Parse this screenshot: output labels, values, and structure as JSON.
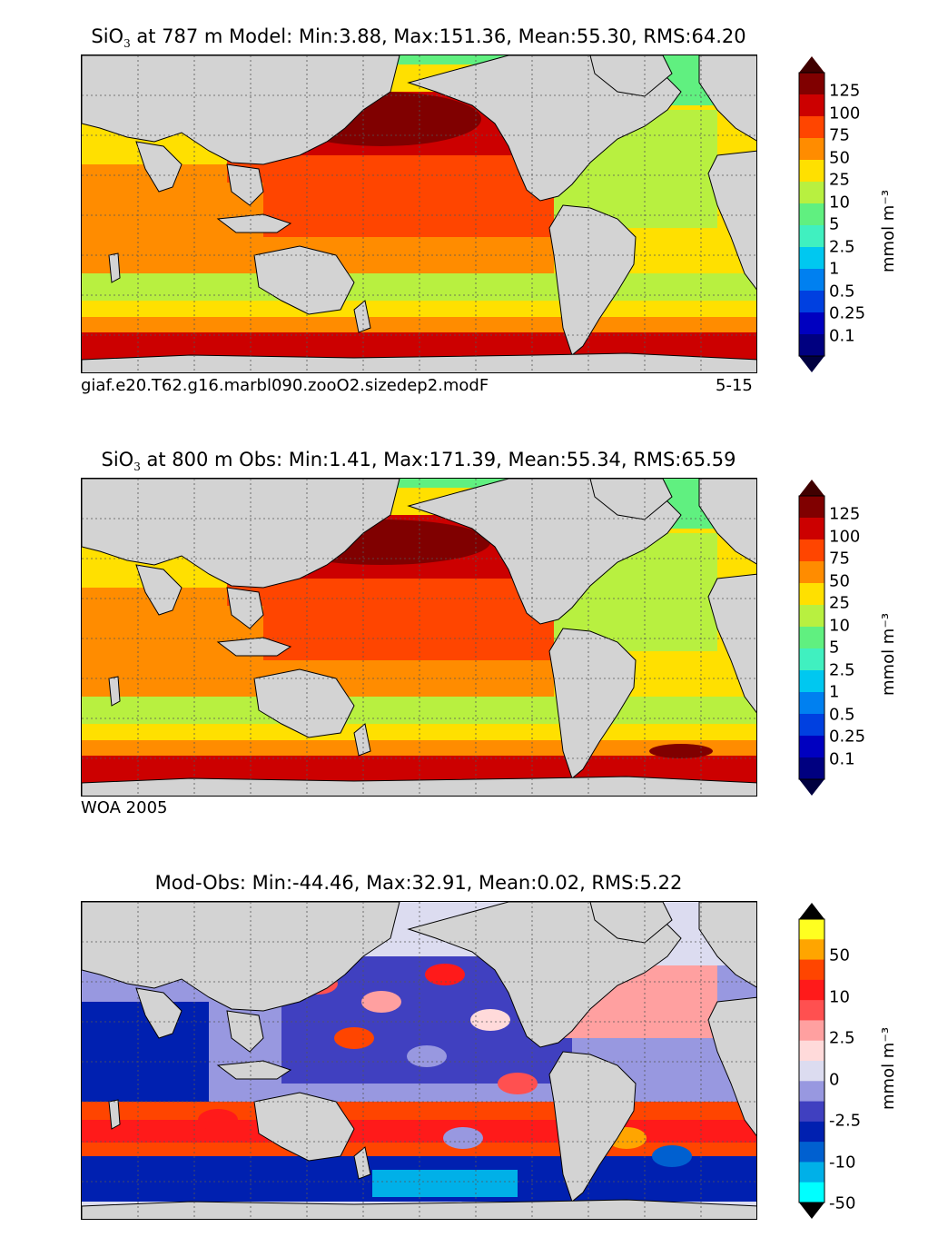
{
  "panels": [
    {
      "title_prefix": "SiO",
      "title_sub": "3",
      "title_suffix": " at 787 m Model: Min:3.88, Max:151.36, Mean:55.30, RMS:64.20",
      "caption_left": "giaf.e20.T62.g16.marbl090.zooO2.sizedep2.modF",
      "caption_right": "5-15",
      "colorbar_unit": "mmol m⁻³",
      "colorbar_ticks": [
        "125",
        "100",
        "75",
        "50",
        "25",
        "10",
        "5",
        "2.5",
        "1",
        "0.5",
        "0.25",
        "0.1"
      ],
      "colorbar_colors": [
        "#800000",
        "#cc0000",
        "#ff4500",
        "#ff8c00",
        "#ffe000",
        "#b8f040",
        "#60f080",
        "#40f0c0",
        "#00c8f0",
        "#0080f0",
        "#0040e0",
        "#0000c0",
        "#000080"
      ],
      "overflow_top": "#400000",
      "overflow_bottom": "#000040"
    },
    {
      "title_prefix": "SiO",
      "title_sub": "3",
      "title_suffix": " at 800 m Obs: Min:1.41, Max:171.39, Mean:55.34, RMS:65.59",
      "caption_left": "WOA 2005",
      "caption_right": "",
      "colorbar_unit": "mmol m⁻³",
      "colorbar_ticks": [
        "125",
        "100",
        "75",
        "50",
        "25",
        "10",
        "5",
        "2.5",
        "1",
        "0.5",
        "0.25",
        "0.1"
      ],
      "colorbar_colors": [
        "#800000",
        "#cc0000",
        "#ff4500",
        "#ff8c00",
        "#ffe000",
        "#b8f040",
        "#60f080",
        "#40f0c0",
        "#00c8f0",
        "#0080f0",
        "#0040e0",
        "#0000c0",
        "#000080"
      ],
      "overflow_top": "#400000",
      "overflow_bottom": "#000040"
    },
    {
      "title_prefix": "",
      "title_sub": "",
      "title_suffix": "Mod-Obs: Min:-44.46, Max:32.91, Mean:0.02, RMS:5.22",
      "caption_left": "",
      "caption_right": "",
      "colorbar_unit": "mmol m⁻³",
      "colorbar_ticks": [
        "50",
        "10",
        "2.5",
        "0",
        "-2.5",
        "-10",
        "-50"
      ],
      "colorbar_colors": [
        "#ffff20",
        "#ffa500",
        "#ff4500",
        "#ff1a1a",
        "#ff5050",
        "#ffa0a0",
        "#ffdada",
        "#dcdcf0",
        "#9898e0",
        "#4040c0",
        "#0020b0",
        "#0060d0",
        "#00b0e8",
        "#00ffff"
      ],
      "overflow_top": "#000000",
      "overflow_bottom": "#000000"
    }
  ]
}
